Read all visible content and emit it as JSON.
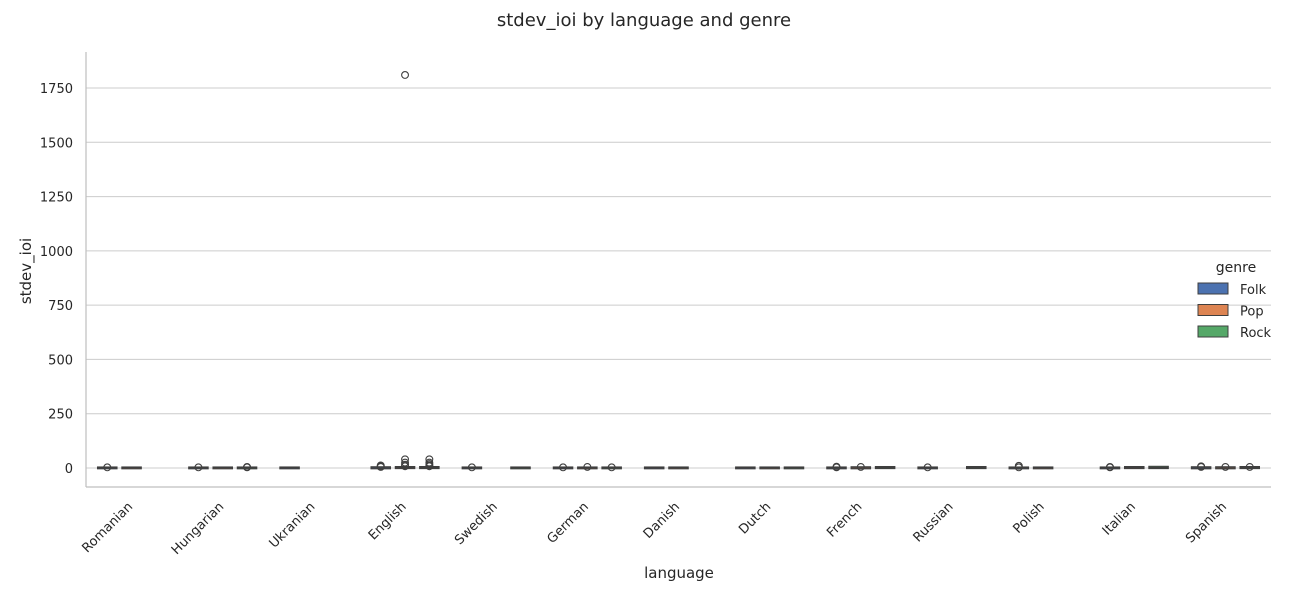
{
  "chart_data": {
    "type": "box",
    "title": "stdev_ioi by language and genre",
    "xlabel": "language",
    "ylabel": "stdev_ioi",
    "ylim": [
      -90,
      1920
    ],
    "yticks": [
      0,
      250,
      500,
      750,
      1000,
      1250,
      1500,
      1750
    ],
    "grid": "horizontal",
    "legend_title": "genre",
    "legend_position": "right",
    "categories": [
      "Romanian",
      "Hungarian",
      "Ukranian",
      "English",
      "Swedish",
      "German",
      "Danish",
      "Dutch",
      "French",
      "Russian",
      "Polish",
      "Italian",
      "Spanish"
    ],
    "series": [
      {
        "name": "Folk",
        "color": "#4c72b0"
      },
      {
        "name": "Pop",
        "color": "#dd8452"
      },
      {
        "name": "Rock",
        "color": "#55a868"
      }
    ],
    "boxes": [
      {
        "category": "Romanian",
        "genre": "Folk",
        "min": 0,
        "q1": 0,
        "median": 1,
        "q3": 1,
        "max": 2,
        "outliers": [
          3
        ]
      },
      {
        "category": "Romanian",
        "genre": "Pop",
        "min": 0,
        "q1": 0,
        "median": 1,
        "q3": 1,
        "max": 2,
        "outliers": []
      },
      {
        "category": "Hungarian",
        "genre": "Folk",
        "min": 0,
        "q1": 0,
        "median": 1,
        "q3": 1,
        "max": 2,
        "outliers": [
          3
        ]
      },
      {
        "category": "Hungarian",
        "genre": "Pop",
        "min": 0,
        "q1": 0,
        "median": 1,
        "q3": 1,
        "max": 2,
        "outliers": []
      },
      {
        "category": "Hungarian",
        "genre": "Rock",
        "min": 0,
        "q1": 0,
        "median": 1,
        "q3": 1,
        "max": 2,
        "outliers": [
          3,
          5
        ]
      },
      {
        "category": "Ukranian",
        "genre": "Folk",
        "min": 0,
        "q1": 0,
        "median": 1,
        "q3": 1,
        "max": 2,
        "outliers": []
      },
      {
        "category": "English",
        "genre": "Folk",
        "min": 0,
        "q1": 0,
        "median": 1,
        "q3": 2,
        "max": 4,
        "outliers": [
          5,
          8,
          12
        ]
      },
      {
        "category": "English",
        "genre": "Pop",
        "min": 0,
        "q1": 1,
        "median": 2,
        "q3": 3,
        "max": 6,
        "outliers": [
          8,
          15,
          25,
          40,
          1810
        ]
      },
      {
        "category": "English",
        "genre": "Rock",
        "min": 0,
        "q1": 1,
        "median": 2,
        "q3": 3,
        "max": 6,
        "outliers": [
          8,
          12,
          18,
          25,
          40
        ]
      },
      {
        "category": "Swedish",
        "genre": "Folk",
        "min": 0,
        "q1": 0,
        "median": 1,
        "q3": 1,
        "max": 2,
        "outliers": [
          3
        ]
      },
      {
        "category": "Swedish",
        "genre": "Rock",
        "min": 0,
        "q1": 0,
        "median": 1,
        "q3": 1,
        "max": 2,
        "outliers": []
      },
      {
        "category": "German",
        "genre": "Folk",
        "min": 0,
        "q1": 0,
        "median": 1,
        "q3": 1,
        "max": 2,
        "outliers": [
          3
        ]
      },
      {
        "category": "German",
        "genre": "Pop",
        "min": 0,
        "q1": 0,
        "median": 1,
        "q3": 1,
        "max": 2,
        "outliers": [
          5
        ]
      },
      {
        "category": "German",
        "genre": "Rock",
        "min": 0,
        "q1": 0,
        "median": 1,
        "q3": 1,
        "max": 2,
        "outliers": [
          3
        ]
      },
      {
        "category": "Danish",
        "genre": "Folk",
        "min": 0,
        "q1": 0,
        "median": 1,
        "q3": 1,
        "max": 2,
        "outliers": []
      },
      {
        "category": "Danish",
        "genre": "Pop",
        "min": 0,
        "q1": 0,
        "median": 1,
        "q3": 1,
        "max": 2,
        "outliers": []
      },
      {
        "category": "Dutch",
        "genre": "Folk",
        "min": 0,
        "q1": 0,
        "median": 1,
        "q3": 1,
        "max": 2,
        "outliers": []
      },
      {
        "category": "Dutch",
        "genre": "Pop",
        "min": 0,
        "q1": 0,
        "median": 1,
        "q3": 1,
        "max": 2,
        "outliers": []
      },
      {
        "category": "Dutch",
        "genre": "Rock",
        "min": 0,
        "q1": 0,
        "median": 1,
        "q3": 1,
        "max": 2,
        "outliers": []
      },
      {
        "category": "French",
        "genre": "Folk",
        "min": 0,
        "q1": 0,
        "median": 1,
        "q3": 1,
        "max": 2,
        "outliers": [
          3,
          6
        ]
      },
      {
        "category": "French",
        "genre": "Pop",
        "min": 0,
        "q1": 0,
        "median": 1,
        "q3": 2,
        "max": 3,
        "outliers": [
          5
        ]
      },
      {
        "category": "French",
        "genre": "Rock",
        "min": 0,
        "q1": 1,
        "median": 2,
        "q3": 3,
        "max": 5,
        "outliers": []
      },
      {
        "category": "Russian",
        "genre": "Folk",
        "min": 0,
        "q1": 0,
        "median": 1,
        "q3": 1,
        "max": 2,
        "outliers": [
          3
        ]
      },
      {
        "category": "Russian",
        "genre": "Rock",
        "min": 0,
        "q1": 1,
        "median": 2,
        "q3": 3,
        "max": 5,
        "outliers": []
      },
      {
        "category": "Polish",
        "genre": "Folk",
        "min": 0,
        "q1": 0,
        "median": 1,
        "q3": 1,
        "max": 2,
        "outliers": [
          3,
          10
        ]
      },
      {
        "category": "Polish",
        "genre": "Pop",
        "min": 0,
        "q1": 0,
        "median": 1,
        "q3": 1,
        "max": 2,
        "outliers": []
      },
      {
        "category": "Italian",
        "genre": "Folk",
        "min": 0,
        "q1": 0,
        "median": 1,
        "q3": 1,
        "max": 2,
        "outliers": [
          3,
          5
        ]
      },
      {
        "category": "Italian",
        "genre": "Pop",
        "min": 0,
        "q1": 1,
        "median": 2,
        "q3": 3,
        "max": 5,
        "outliers": []
      },
      {
        "category": "Italian",
        "genre": "Rock",
        "min": 0,
        "q1": 1,
        "median": 2,
        "q3": 4,
        "max": 6,
        "outliers": []
      },
      {
        "category": "Spanish",
        "genre": "Folk",
        "min": 0,
        "q1": 0,
        "median": 1,
        "q3": 2,
        "max": 3,
        "outliers": [
          5,
          8
        ]
      },
      {
        "category": "Spanish",
        "genre": "Pop",
        "min": 0,
        "q1": 0,
        "median": 1,
        "q3": 2,
        "max": 3,
        "outliers": [
          5
        ]
      },
      {
        "category": "Spanish",
        "genre": "Rock",
        "min": 0,
        "q1": 1,
        "median": 2,
        "q3": 3,
        "max": 5,
        "outliers": [
          5
        ]
      }
    ]
  }
}
